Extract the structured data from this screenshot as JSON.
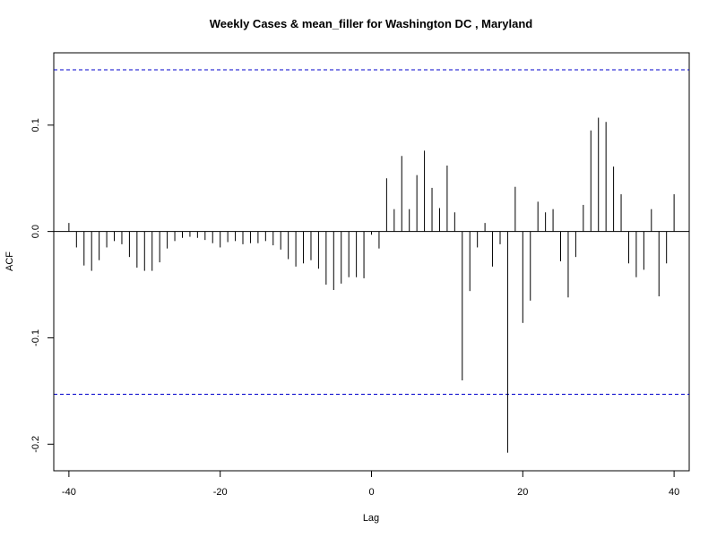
{
  "chart_data": {
    "type": "bar",
    "title": "Weekly Cases & mean_filler for Washington DC , Maryland",
    "xlabel": "Lag",
    "ylabel": "ACF",
    "xlim": [
      -42,
      42
    ],
    "ylim": [
      -0.225,
      0.168
    ],
    "x_ticks": [
      -40,
      -20,
      0,
      20,
      40
    ],
    "y_ticks": [
      -0.2,
      -0.1,
      0.0,
      0.1
    ],
    "y_tick_labels": [
      "-0.2",
      "-0.1",
      "0.0",
      "0.1"
    ],
    "confidence_bounds": [
      0.152,
      -0.153
    ],
    "bound_color": "#0000cc",
    "grid": false,
    "lags": [
      -40,
      -39,
      -38,
      -37,
      -36,
      -35,
      -34,
      -33,
      -32,
      -31,
      -30,
      -29,
      -28,
      -27,
      -26,
      -25,
      -24,
      -23,
      -22,
      -21,
      -20,
      -19,
      -18,
      -17,
      -16,
      -15,
      -14,
      -13,
      -12,
      -11,
      -10,
      -9,
      -8,
      -7,
      -6,
      -5,
      -4,
      -3,
      -2,
      -1,
      0,
      1,
      2,
      3,
      4,
      5,
      6,
      7,
      8,
      9,
      10,
      11,
      12,
      13,
      14,
      15,
      16,
      17,
      18,
      19,
      20,
      21,
      22,
      23,
      24,
      25,
      26,
      27,
      28,
      29,
      30,
      31,
      32,
      33,
      34,
      35,
      36,
      37,
      38,
      39,
      40
    ],
    "values": [
      0.008,
      -0.015,
      -0.032,
      -0.037,
      -0.027,
      -0.015,
      -0.009,
      -0.012,
      -0.024,
      -0.034,
      -0.037,
      -0.037,
      -0.029,
      -0.016,
      -0.009,
      -0.006,
      -0.005,
      -0.006,
      -0.008,
      -0.011,
      -0.015,
      -0.01,
      -0.009,
      -0.012,
      -0.011,
      -0.011,
      -0.009,
      -0.013,
      -0.017,
      -0.026,
      -0.033,
      -0.03,
      -0.027,
      -0.035,
      -0.05,
      -0.055,
      -0.049,
      -0.043,
      -0.043,
      -0.044,
      -0.003,
      -0.016,
      0.05,
      0.021,
      0.071,
      0.021,
      0.053,
      0.076,
      0.041,
      0.022,
      0.062,
      0.018,
      -0.14,
      -0.056,
      -0.015,
      0.008,
      -0.033,
      -0.012,
      -0.208,
      0.042,
      -0.086,
      -0.065,
      0.028,
      0.018,
      0.021,
      -0.028,
      -0.062,
      -0.024,
      0.025,
      0.095,
      0.107,
      0.103,
      0.061,
      0.035,
      -0.03,
      -0.043,
      -0.036,
      0.021,
      -0.061,
      -0.03,
      0.035
    ]
  }
}
